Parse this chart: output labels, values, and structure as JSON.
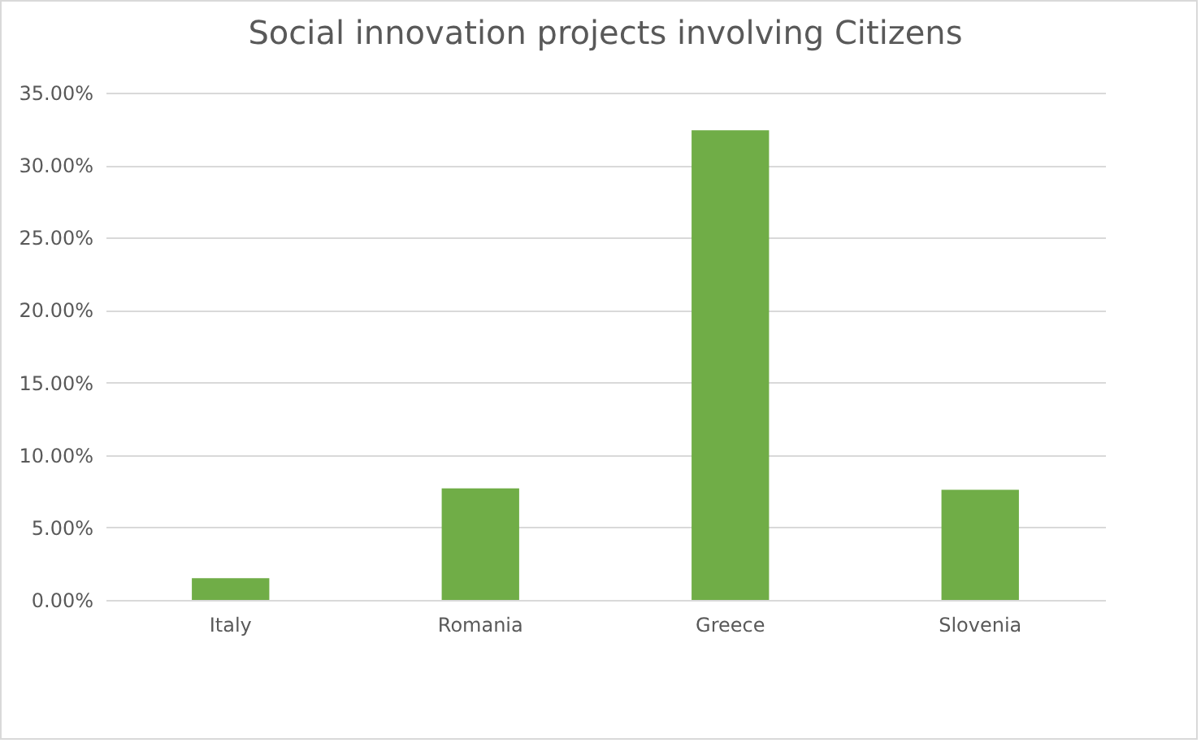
{
  "chart_data": {
    "type": "bar",
    "title": "Social innovation projects involving Citizens",
    "categories": [
      "Italy",
      "Romania",
      "Greece",
      "Slovenia"
    ],
    "values": [
      1.5,
      7.7,
      32.4,
      7.6
    ],
    "color": "#70ad47",
    "ylim": [
      0,
      35
    ],
    "yticks": [
      {
        "value": 0,
        "label": "0.00%"
      },
      {
        "value": 5,
        "label": "5.00%"
      },
      {
        "value": 10,
        "label": "10.00%"
      },
      {
        "value": 15,
        "label": "15.00%"
      },
      {
        "value": 20,
        "label": "20.00%"
      },
      {
        "value": 25,
        "label": "25.00%"
      },
      {
        "value": 30,
        "label": "30.00%"
      },
      {
        "value": 35,
        "label": "35.00%"
      }
    ],
    "grid": "y"
  }
}
